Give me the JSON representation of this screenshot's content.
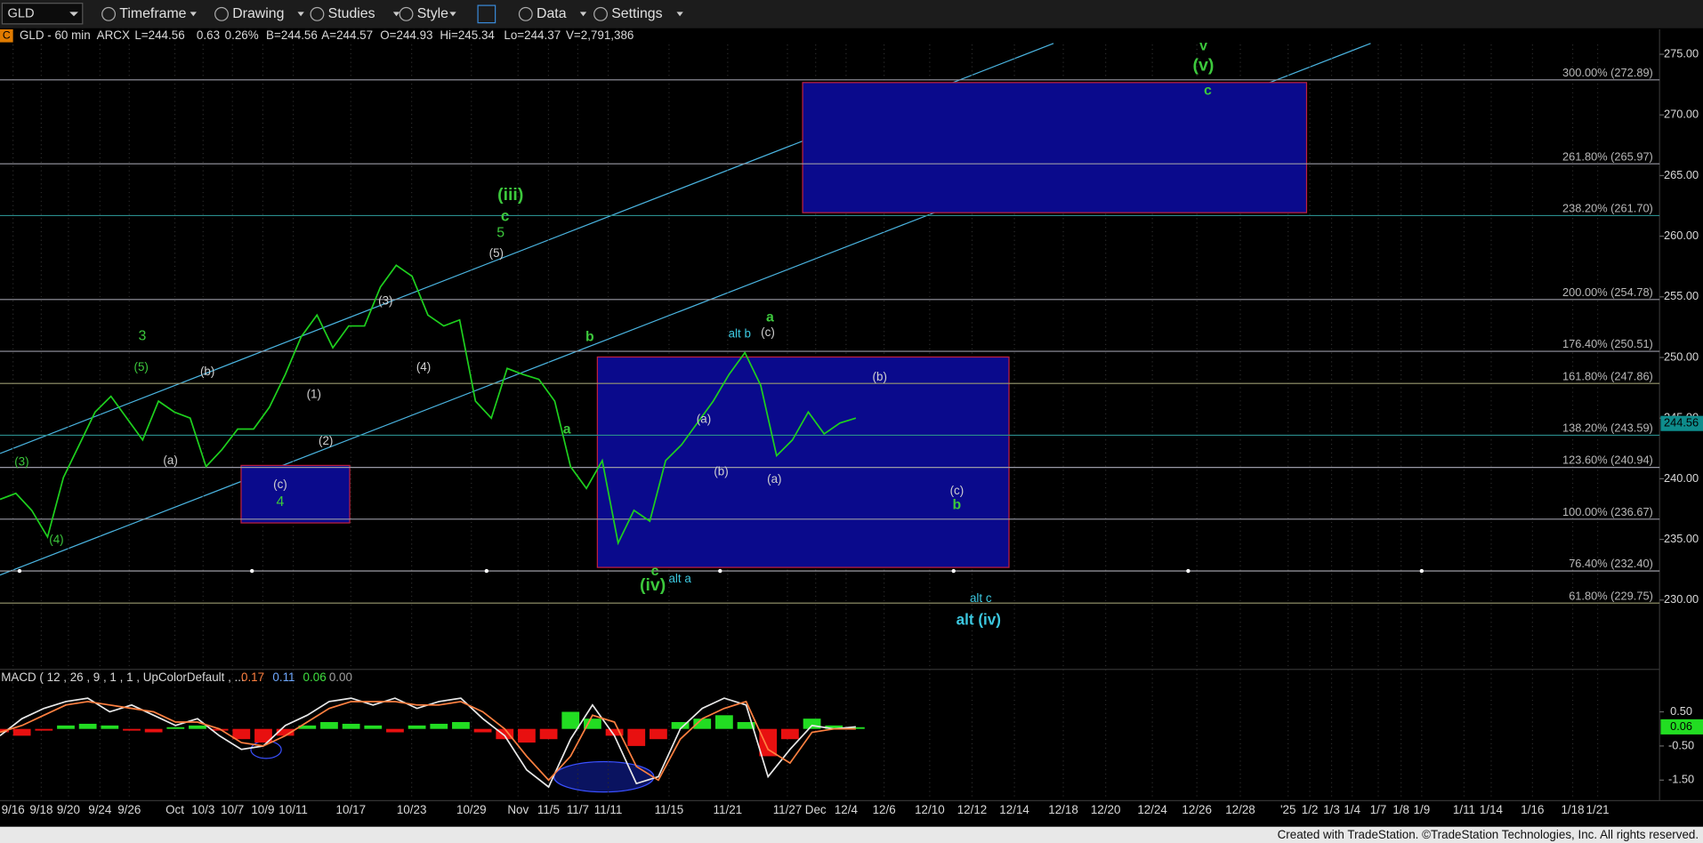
{
  "toolbar": {
    "symbol": "GLD",
    "menus": [
      "Timeframe",
      "Drawing",
      "Studies",
      "Style",
      "Data",
      "Settings"
    ]
  },
  "chart_data": [
    {
      "type": "line",
      "badge": "C",
      "title": "GLD - 60 min",
      "info": [
        "ARCX",
        "L=244.56",
        "0.63",
        "0.26%",
        "B=244.56",
        "A=244.57",
        "O=244.93",
        "Hi=245.34",
        "Lo=244.37",
        "V=2,791,386"
      ],
      "series": [
        {
          "color": "#1ed01e",
          "values": [
            238.3,
            238.8,
            237.4,
            235.2,
            240.1,
            242.8,
            245.5,
            246.8,
            245.0,
            243.2,
            246.4,
            245.5,
            245.0,
            241.0,
            242.4,
            244.1,
            244.1,
            245.9,
            248.6,
            251.7,
            253.5,
            250.8,
            252.6,
            252.6,
            255.8,
            257.6,
            256.7,
            253.5,
            252.6,
            253.1,
            246.4,
            245.0,
            249.1,
            248.6,
            248.2,
            246.4,
            241.0,
            239.2,
            241.5,
            234.7,
            237.4,
            236.5,
            241.5,
            242.8,
            244.6,
            246.4,
            248.6,
            250.4,
            247.7,
            241.9,
            243.2,
            245.5,
            243.7,
            244.6,
            245.0
          ]
        }
      ],
      "last_price": 244.56,
      "last_color": "#0e8c8c",
      "ylim": [
        224.46,
        277.06
      ],
      "yticks": [
        {
          "value": 230,
          "label": "230.00"
        },
        {
          "value": 235,
          "label": "235.00"
        },
        {
          "value": 240,
          "label": "240.00"
        },
        {
          "value": 245,
          "label": "245.00"
        },
        {
          "value": 250,
          "label": "250.00"
        },
        {
          "value": 255,
          "label": "255.00"
        },
        {
          "value": 260,
          "label": "260.00"
        },
        {
          "value": 265,
          "label": "265.00"
        },
        {
          "value": 270,
          "label": "270.00"
        },
        {
          "value": 275,
          "label": "275.00"
        }
      ],
      "x_labels": [
        "9/16",
        "9/18",
        "9/20",
        "9/24",
        "9/26",
        "Oct",
        "10/3",
        "10/7",
        "10/9",
        "10/11",
        "10/17",
        "10/23",
        "10/29",
        "Nov",
        "11/5",
        "11/7",
        "11/11",
        "11/15",
        "11/21",
        "11/27",
        "Dec",
        "12/4",
        "12/6",
        "12/10",
        "12/12",
        "12/14",
        "12/18",
        "12/20",
        "12/24",
        "12/26",
        "12/28",
        "'25",
        "1/2",
        "1/3",
        "1/4",
        "1/7",
        "1/8",
        "1/9",
        "1/11",
        "1/14",
        "1/16",
        "1/18",
        "1/21"
      ],
      "levels": [
        {
          "value": 272.89,
          "label": "300.00% (272.89)",
          "color": "#9a9aa6"
        },
        {
          "value": 265.97,
          "label": "261.80% (265.97)",
          "color": "#9a9aa6"
        },
        {
          "value": 261.7,
          "label": "238.20% (261.70)",
          "color": "#2a8c8c"
        },
        {
          "value": 254.78,
          "label": "200.00% (254.78)",
          "color": "#9a9aa6"
        },
        {
          "value": 250.51,
          "label": "176.40% (250.51)",
          "color": "#9a9aa6"
        },
        {
          "value": 247.86,
          "label": "161.80% (247.86)",
          "color": "#9a9a70"
        },
        {
          "value": 243.59,
          "label": "138.20% (243.59)",
          "color": "#2a8c8c"
        },
        {
          "value": 240.94,
          "label": "123.60% (240.94)",
          "color": "#9a9aa6"
        },
        {
          "value": 236.67,
          "label": "100.00% (236.67)",
          "color": "#9a9aa6"
        },
        {
          "value": 232.4,
          "label": "76.40% (232.40)",
          "color": "#b0b0b8"
        },
        {
          "value": 229.75,
          "label": "61.80% (229.75)",
          "color": "#9a9a70"
        }
      ],
      "zones": [
        {
          "top": 272.67,
          "bottom": 261.94
        },
        {
          "top": 250.04,
          "bottom": 232.69
        },
        {
          "top": 241.1,
          "bottom": 236.36
        }
      ],
      "annotations": [
        {
          "text": "(iii)",
          "color": "#3cc83c"
        },
        {
          "text": "c",
          "color": "#3cc83c"
        },
        {
          "text": "5",
          "color": "#3cc83c"
        },
        {
          "text": "3",
          "color": "#3cc83c"
        },
        {
          "text": "(5)",
          "color": "#3cc83c"
        },
        {
          "text": "(3)",
          "color": "#3cc83c"
        },
        {
          "text": "(4)",
          "color": "#3cc83c"
        },
        {
          "text": "4",
          "color": "#3cc83c"
        },
        {
          "text": "b",
          "color": "#3cc83c"
        },
        {
          "text": "a",
          "color": "#3cc83c"
        },
        {
          "text": "a",
          "color": "#3cc83c"
        },
        {
          "text": "c",
          "color": "#3cc83c"
        },
        {
          "text": "(iv)",
          "color": "#3cc83c"
        },
        {
          "text": "v",
          "color": "#3cc83c"
        },
        {
          "text": "(v)",
          "color": "#3cc83c"
        },
        {
          "text": "c",
          "color": "#3cc83c"
        },
        {
          "text": "b",
          "color": "#3cc83c"
        },
        {
          "text": "(b)",
          "color": "#d0d0d0"
        },
        {
          "text": "(a)",
          "color": "#d0d0d0"
        },
        {
          "text": "(c)",
          "color": "#d0d0d0"
        },
        {
          "text": "(1)",
          "color": "#d0d0d0"
        },
        {
          "text": "(2)",
          "color": "#d0d0d0"
        },
        {
          "text": "(3)",
          "color": "#d0d0d0"
        },
        {
          "text": "(4)",
          "color": "#d0d0d0"
        },
        {
          "text": "(5)",
          "color": "#d0d0d0"
        },
        {
          "text": "(a)",
          "color": "#d0d0d0"
        },
        {
          "text": "(b)",
          "color": "#d0d0d0"
        },
        {
          "text": "(a)",
          "color": "#d0d0d0"
        },
        {
          "text": "(c)",
          "color": "#d0d0d0"
        },
        {
          "text": "(b)",
          "color": "#d0d0d0"
        },
        {
          "text": "(c)",
          "color": "#d0d0d0"
        },
        {
          "text": "alt b",
          "color": "#3cc8e0"
        },
        {
          "text": "alt a",
          "color": "#3cc8e0"
        },
        {
          "text": "alt c",
          "color": "#3cc8e0"
        },
        {
          "text": "alt (iv)",
          "color": "#3cc8e0"
        }
      ]
    },
    {
      "type": "macd",
      "title": "MACD ( 12 , 26 , 9 , 1 , 1 , UpColorDefault , ...",
      "readouts": [
        {
          "text": "0.17",
          "color": "#ff8040"
        },
        {
          "text": "0.11",
          "color": "#6fa8ff"
        },
        {
          "text": "0.06",
          "color": "#40e040"
        },
        {
          "text": "0.00",
          "color": "#a0a0a0"
        }
      ],
      "series": [
        {
          "color": "#e8e8e8",
          "values": [
            -0.2,
            0.3,
            0.6,
            0.8,
            0.9,
            0.5,
            0.7,
            0.4,
            0.1,
            0.3,
            -0.2,
            -0.6,
            -0.5,
            0.1,
            0.4,
            0.8,
            0.9,
            0.7,
            0.9,
            0.6,
            0.8,
            0.9,
            0.3,
            -0.2,
            -1.2,
            -1.7,
            -0.3,
            0.7,
            -0.2,
            -1.6,
            -1.4,
            0.0,
            0.6,
            0.9,
            0.7,
            -1.4,
            -0.6,
            0.1,
            0.0,
            0.06
          ]
        },
        {
          "color": "#ff8040",
          "values": [
            -0.1,
            0.1,
            0.4,
            0.7,
            0.8,
            0.7,
            0.6,
            0.5,
            0.2,
            0.2,
            0.0,
            -0.4,
            -0.5,
            -0.2,
            0.2,
            0.6,
            0.8,
            0.8,
            0.8,
            0.7,
            0.7,
            0.8,
            0.5,
            0.0,
            -0.8,
            -1.5,
            -0.8,
            0.4,
            0.2,
            -1.1,
            -1.5,
            -0.3,
            0.3,
            0.6,
            0.8,
            -0.6,
            -1.0,
            -0.1,
            0.0,
            0.0
          ]
        }
      ],
      "histogram": {
        "up_color": "#22dd22",
        "down_color": "#e81010",
        "values": [
          -0.1,
          -0.2,
          -0.05,
          0.1,
          0.15,
          0.1,
          -0.05,
          -0.1,
          0.05,
          0.1,
          -0.05,
          -0.3,
          -0.4,
          -0.2,
          0.1,
          0.2,
          0.15,
          0.1,
          -0.1,
          0.1,
          0.15,
          0.2,
          -0.1,
          -0.3,
          -0.4,
          -0.3,
          0.5,
          0.3,
          -0.2,
          -0.5,
          -0.3,
          0.2,
          0.3,
          0.4,
          0.2,
          -0.8,
          -0.3,
          0.3,
          0.1,
          0.05
        ]
      },
      "last_value": 0.06,
      "ylim": [
        -2.07,
        1.71
      ],
      "yticks": [
        {
          "value": 0.5,
          "label": "0.50"
        },
        {
          "value": -0.5,
          "label": "-0.50"
        },
        {
          "value": -1.5,
          "label": "-1.50"
        }
      ]
    }
  ],
  "footer": "Created with TradeStation. ©TradeStation Technologies, Inc. All rights reserved."
}
